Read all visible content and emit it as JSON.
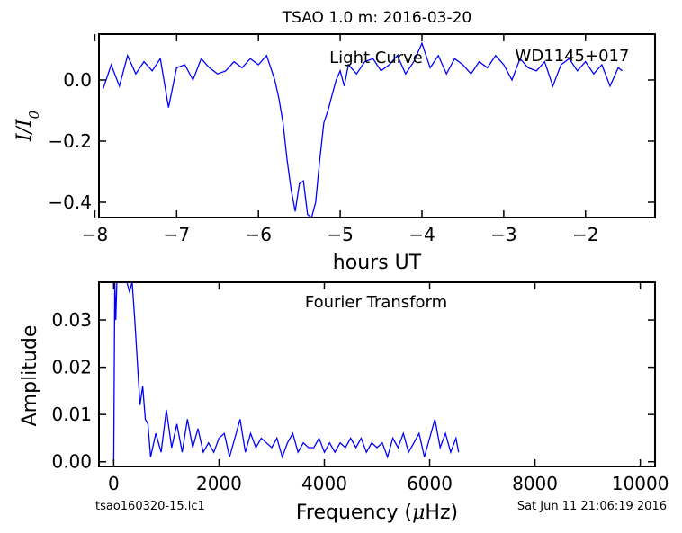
{
  "figure": {
    "footer_left": "tsao160320-15.lc1",
    "footer_right": "Sat Jun 11 21:06:19 2016",
    "line_color": "#0000ff"
  },
  "chart_data": [
    {
      "type": "line",
      "title": "TSAO 1.0 m:  2016-03-20",
      "annotations": [
        "Light Curve",
        "WD1145+017"
      ],
      "xlabel": "hours UT",
      "ylabel": "I/I0",
      "ylabel_main": "I/I",
      "ylabel_sub": "0",
      "xlim": [
        -7.95,
        -1.15
      ],
      "ylim": [
        -0.45,
        0.15
      ],
      "xticks": [
        -8,
        -7,
        -6,
        -5,
        -4,
        -3,
        -2
      ],
      "xtick_labels": [
        "−8",
        "−7",
        "−6",
        "−5",
        "−4",
        "−3",
        "−2"
      ],
      "yticks": [
        0.0,
        -0.2,
        -0.4
      ],
      "ytick_labels": [
        "0.0",
        "−0.2",
        "−0.4"
      ],
      "grid": false,
      "series": [
        {
          "x": [
            -7.9,
            -7.8,
            -7.7,
            -7.6,
            -7.5,
            -7.4,
            -7.3,
            -7.2,
            -7.1,
            -7.0,
            -6.9,
            -6.8,
            -6.7,
            -6.6,
            -6.5,
            -6.4,
            -6.3,
            -6.2,
            -6.1,
            -6.0,
            -5.9,
            -5.85,
            -5.8,
            -5.75,
            -5.7,
            -5.65,
            -5.6,
            -5.55,
            -5.5,
            -5.45,
            -5.4,
            -5.35,
            -5.3,
            -5.25,
            -5.2,
            -5.15,
            -5.1,
            -5.05,
            -5.0,
            -4.95,
            -4.9,
            -4.8,
            -4.7,
            -4.6,
            -4.5,
            -4.4,
            -4.3,
            -4.2,
            -4.1,
            -4.0,
            -3.9,
            -3.8,
            -3.7,
            -3.6,
            -3.5,
            -3.4,
            -3.3,
            -3.2,
            -3.1,
            -3.0,
            -2.9,
            -2.8,
            -2.7,
            -2.6,
            -2.5,
            -2.4,
            -2.3,
            -2.2,
            -2.1,
            -2.0,
            -1.9,
            -1.8,
            -1.7,
            -1.6,
            -1.55
          ],
          "y": [
            -0.03,
            0.05,
            -0.02,
            0.08,
            0.02,
            0.06,
            0.03,
            0.07,
            -0.09,
            0.04,
            0.05,
            0.0,
            0.07,
            0.04,
            0.02,
            0.03,
            0.06,
            0.04,
            0.07,
            0.05,
            0.08,
            0.04,
            0.0,
            -0.06,
            -0.14,
            -0.26,
            -0.36,
            -0.43,
            -0.34,
            -0.33,
            -0.44,
            -0.45,
            -0.4,
            -0.26,
            -0.14,
            -0.1,
            -0.05,
            0.0,
            0.03,
            -0.02,
            0.05,
            0.02,
            0.06,
            0.07,
            0.03,
            0.05,
            0.08,
            0.02,
            0.06,
            0.12,
            0.04,
            0.08,
            0.02,
            0.07,
            0.05,
            0.02,
            0.06,
            0.04,
            0.08,
            0.05,
            0.0,
            0.07,
            0.04,
            0.03,
            0.06,
            -0.02,
            0.05,
            0.07,
            0.03,
            0.06,
            0.02,
            0.05,
            -0.02,
            0.04,
            0.03
          ]
        }
      ]
    },
    {
      "type": "line",
      "title": "Fourier Transform",
      "xlabel_prefix": "Frequency (",
      "xlabel_mu": "μ",
      "xlabel_suffix": "Hz)",
      "xlabel": "Frequency (μHz)",
      "ylabel": "Amplitude",
      "xlim": [
        -280,
        10280
      ],
      "ylim": [
        -0.001,
        0.038
      ],
      "xticks": [
        0,
        2000,
        4000,
        6000,
        8000,
        10000
      ],
      "xtick_labels": [
        "0",
        "2000",
        "4000",
        "6000",
        "8000",
        "10000"
      ],
      "yticks": [
        0.0,
        0.01,
        0.02,
        0.03
      ],
      "ytick_labels": [
        "0.00",
        "0.01",
        "0.02",
        "0.03"
      ],
      "grid": false,
      "series": [
        {
          "x": [
            0,
            20,
            40,
            60,
            80,
            100,
            150,
            200,
            250,
            300,
            350,
            400,
            450,
            500,
            550,
            600,
            650,
            700,
            800,
            900,
            1000,
            1100,
            1200,
            1300,
            1400,
            1500,
            1600,
            1700,
            1800,
            1900,
            2000,
            2100,
            2200,
            2300,
            2400,
            2500,
            2600,
            2700,
            2800,
            2900,
            3000,
            3100,
            3200,
            3300,
            3400,
            3500,
            3600,
            3700,
            3800,
            3900,
            4000,
            4100,
            4200,
            4300,
            4400,
            4500,
            4600,
            4700,
            4800,
            4900,
            5000,
            5100,
            5200,
            5300,
            5400,
            5500,
            5600,
            5700,
            5800,
            5900,
            6000,
            6100,
            6200,
            6300,
            6400,
            6500,
            6550
          ],
          "y": [
            0.0,
            0.038,
            0.03,
            0.038,
            0.038,
            0.038,
            0.038,
            0.038,
            0.038,
            0.036,
            0.038,
            0.03,
            0.021,
            0.012,
            0.016,
            0.009,
            0.008,
            0.001,
            0.006,
            0.002,
            0.011,
            0.003,
            0.008,
            0.002,
            0.009,
            0.003,
            0.007,
            0.002,
            0.004,
            0.002,
            0.005,
            0.006,
            0.001,
            0.005,
            0.009,
            0.002,
            0.006,
            0.003,
            0.005,
            0.004,
            0.003,
            0.005,
            0.001,
            0.004,
            0.006,
            0.002,
            0.004,
            0.003,
            0.003,
            0.005,
            0.002,
            0.004,
            0.002,
            0.004,
            0.003,
            0.005,
            0.003,
            0.005,
            0.002,
            0.004,
            0.003,
            0.004,
            0.001,
            0.005,
            0.003,
            0.006,
            0.002,
            0.004,
            0.006,
            0.001,
            0.005,
            0.009,
            0.003,
            0.006,
            0.002,
            0.005,
            0.002
          ]
        }
      ]
    }
  ]
}
